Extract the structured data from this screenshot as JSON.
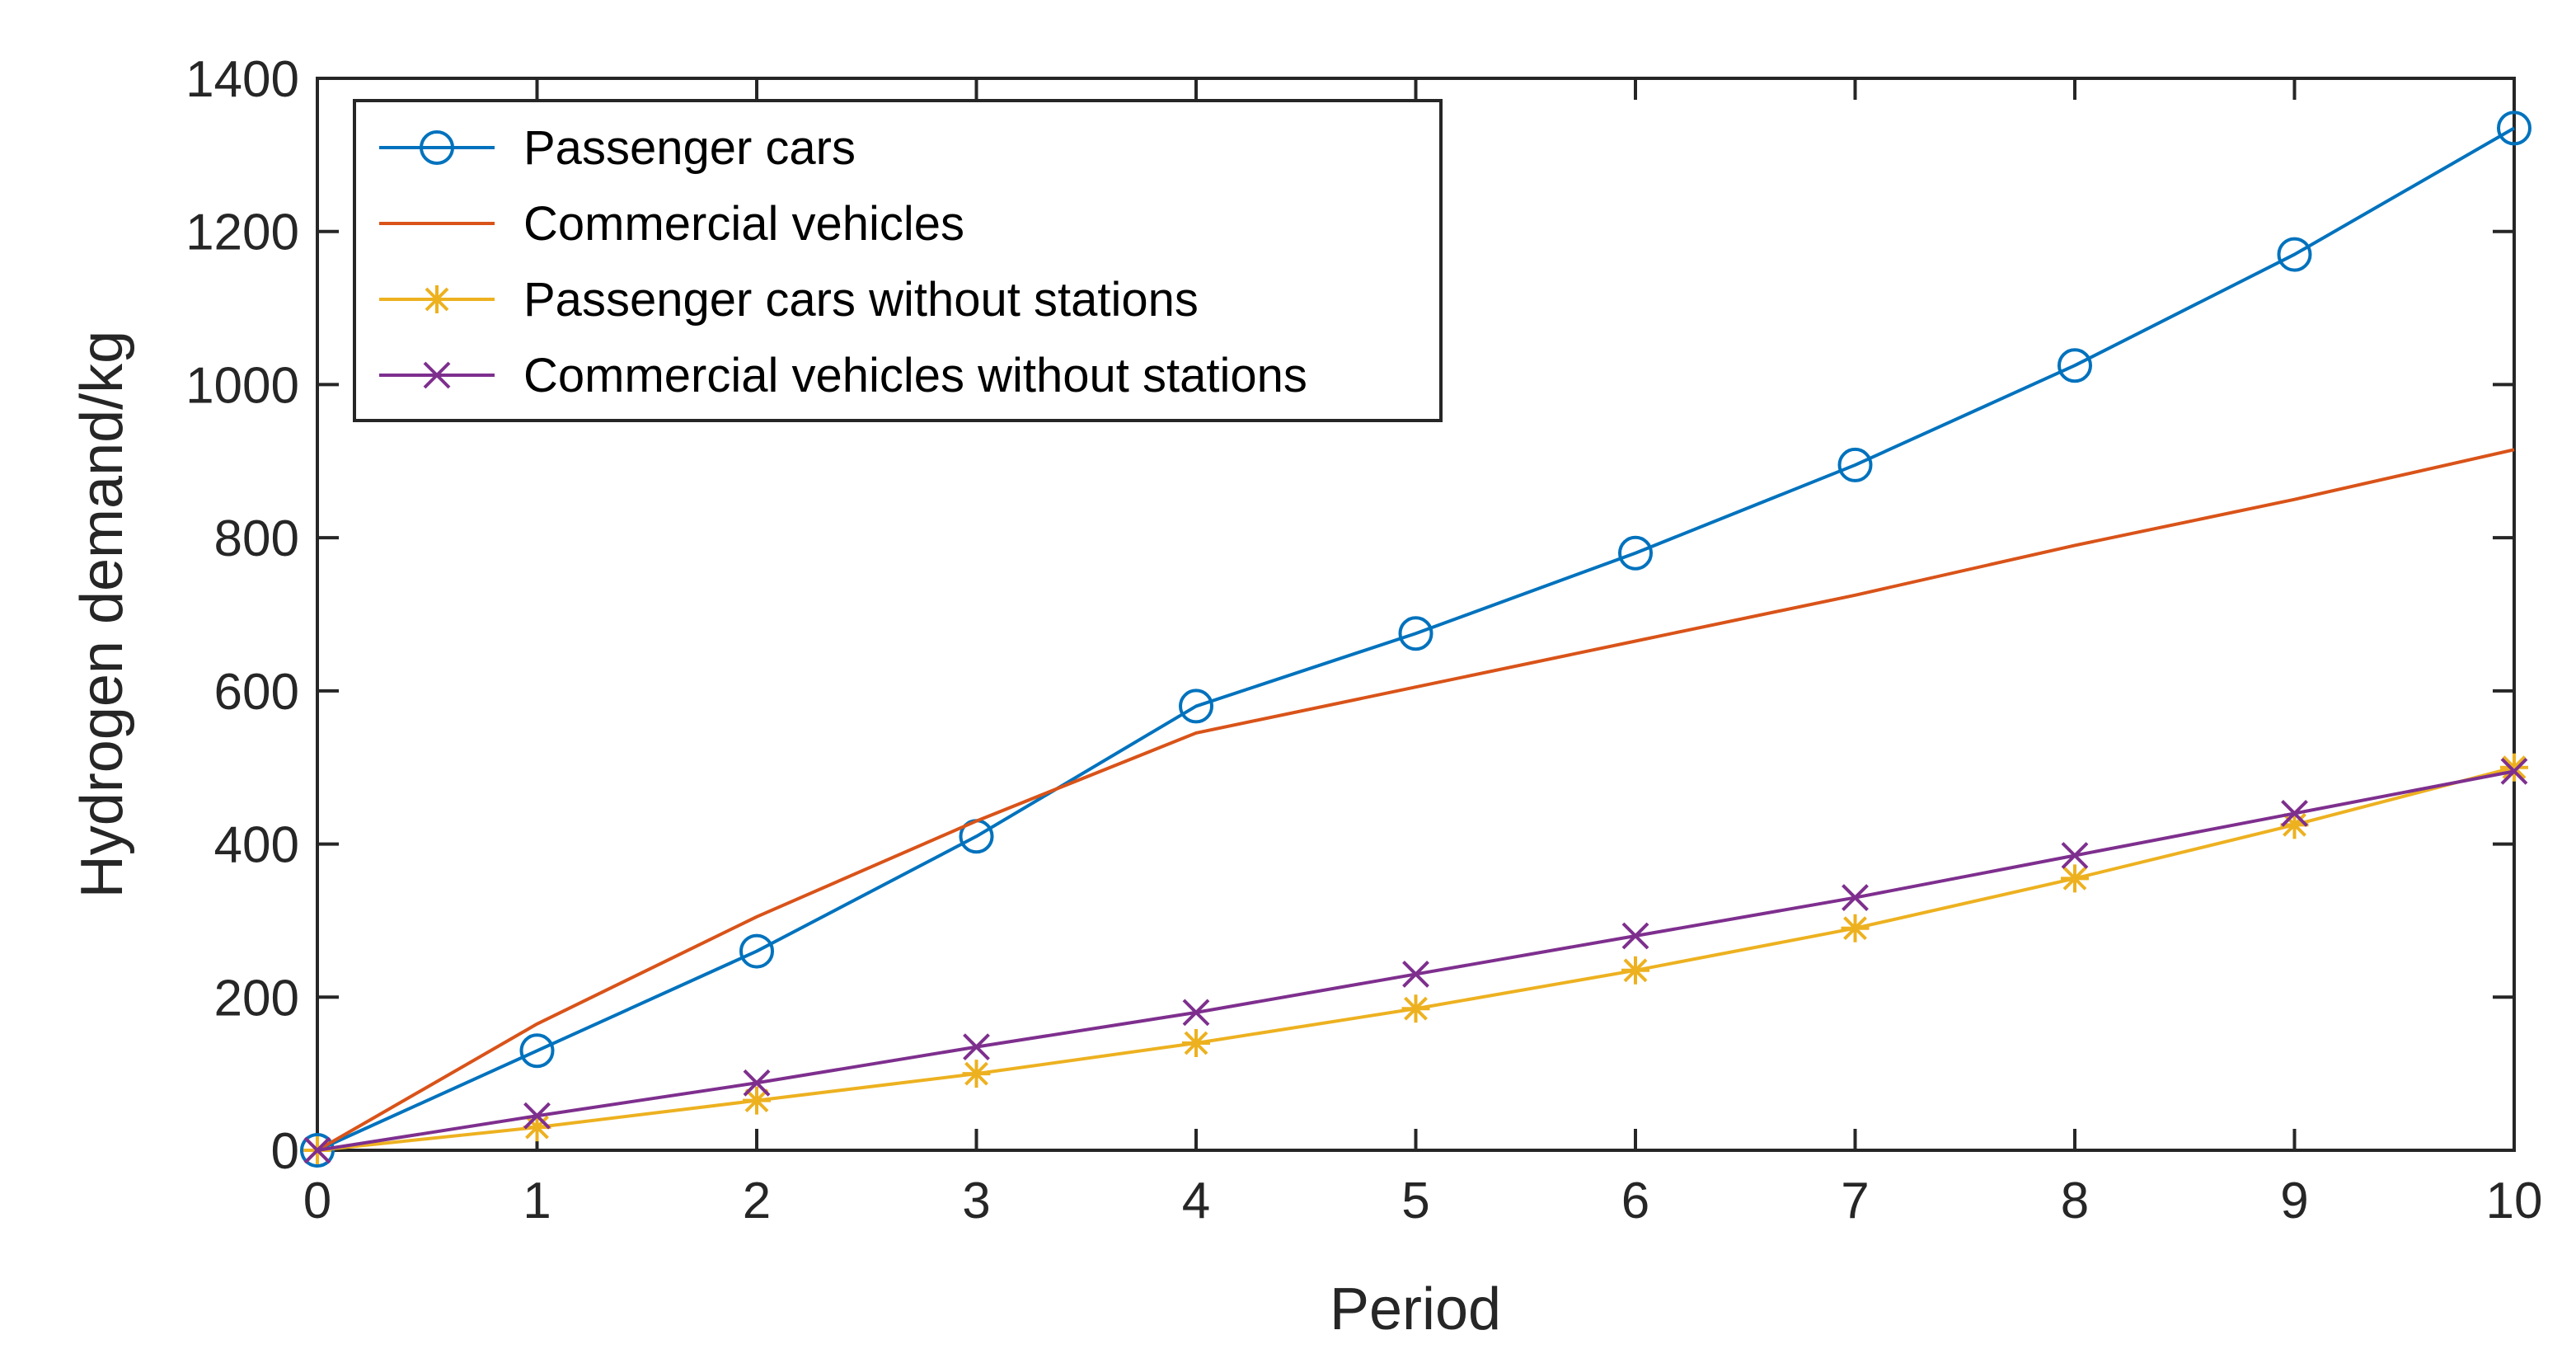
{
  "chart_data": {
    "type": "line",
    "title": "",
    "xlabel": "Period",
    "ylabel": "Hydrogen demand/kg",
    "xlim": [
      0,
      10
    ],
    "ylim": [
      0,
      1400
    ],
    "x_ticks": [
      0,
      1,
      2,
      3,
      4,
      5,
      6,
      7,
      8,
      9,
      10
    ],
    "y_ticks": [
      0,
      200,
      400,
      600,
      800,
      1000,
      1200,
      1400
    ],
    "grid": false,
    "legend_position": "top-left",
    "x": [
      0,
      1,
      2,
      3,
      4,
      5,
      6,
      7,
      8,
      9,
      10
    ],
    "series": [
      {
        "name": "Passenger cars",
        "color": "#0072BD",
        "marker": "circle",
        "values": [
          0,
          130,
          260,
          410,
          580,
          675,
          780,
          895,
          1025,
          1170,
          1335
        ]
      },
      {
        "name": "Commercial vehicles",
        "color": "#D95319",
        "marker": "none",
        "values": [
          0,
          165,
          305,
          430,
          545,
          605,
          665,
          725,
          790,
          850,
          915
        ]
      },
      {
        "name": "Passenger cars without stations",
        "color": "#EDB120",
        "marker": "star",
        "values": [
          0,
          30,
          65,
          100,
          140,
          185,
          235,
          290,
          355,
          425,
          500
        ]
      },
      {
        "name": "Commercial vehicles without stations",
        "color": "#7E2F8E",
        "marker": "x",
        "values": [
          0,
          45,
          88,
          135,
          180,
          230,
          280,
          330,
          385,
          440,
          495
        ]
      }
    ]
  }
}
